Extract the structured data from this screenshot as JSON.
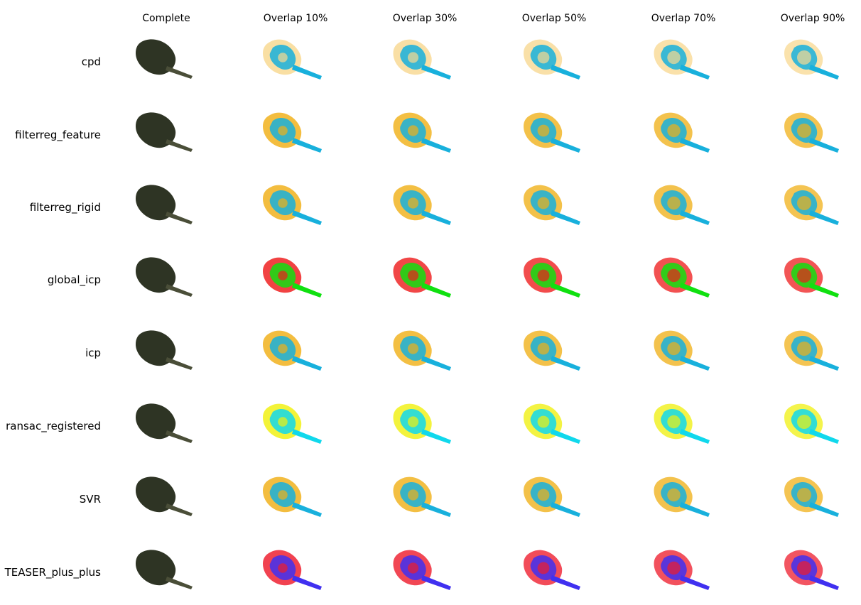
{
  "columns": [
    "Complete",
    "Overlap 10%",
    "Overlap 30%",
    "Overlap 50%",
    "Overlap 70%",
    "Overlap 90%"
  ],
  "rows": [
    {
      "label": "cpd",
      "colors": [
        "#f8d890",
        "#18b0dc"
      ]
    },
    {
      "label": "filterreg_feature",
      "colors": [
        "#f0b018",
        "#18b0dc"
      ]
    },
    {
      "label": "filterreg_rigid",
      "colors": [
        "#f0b018",
        "#18b0dc"
      ]
    },
    {
      "label": "global_icp",
      "colors": [
        "#ee1c1c",
        "#10e010"
      ]
    },
    {
      "label": "icp",
      "colors": [
        "#f0b018",
        "#18b0dc"
      ]
    },
    {
      "label": "ransac_registered",
      "colors": [
        "#f0f010",
        "#10d8ec"
      ]
    },
    {
      "label": "SVR",
      "colors": [
        "#f0b018",
        "#18b0dc"
      ]
    },
    {
      "label": "TEASER_plus_plus",
      "colors": [
        "#ee1c2c",
        "#4030f0"
      ]
    }
  ],
  "complete_color": "#2e3424"
}
